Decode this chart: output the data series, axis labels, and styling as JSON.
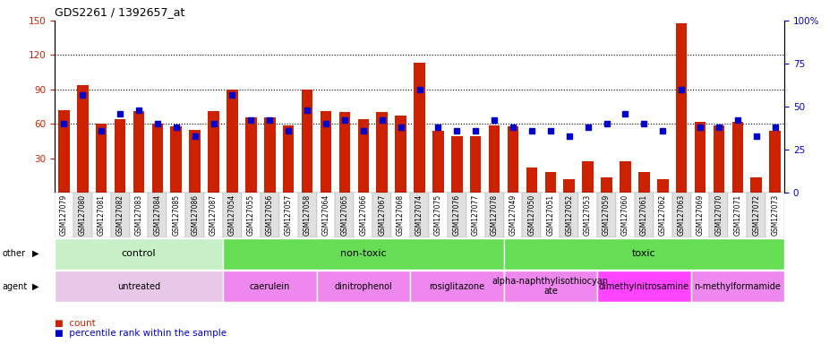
{
  "title": "GDS2261 / 1392657_at",
  "samples": [
    "GSM127079",
    "GSM127080",
    "GSM127081",
    "GSM127082",
    "GSM127083",
    "GSM127084",
    "GSM127085",
    "GSM127086",
    "GSM127087",
    "GSM127054",
    "GSM127055",
    "GSM127056",
    "GSM127057",
    "GSM127058",
    "GSM127064",
    "GSM127065",
    "GSM127066",
    "GSM127067",
    "GSM127068",
    "GSM127074",
    "GSM127075",
    "GSM127076",
    "GSM127077",
    "GSM127078",
    "GSM127049",
    "GSM127050",
    "GSM127051",
    "GSM127052",
    "GSM127053",
    "GSM127059",
    "GSM127060",
    "GSM127061",
    "GSM127062",
    "GSM127063",
    "GSM127069",
    "GSM127070",
    "GSM127071",
    "GSM127072",
    "GSM127073"
  ],
  "counts": [
    72,
    94,
    60,
    64,
    71,
    60,
    58,
    55,
    71,
    90,
    66,
    66,
    59,
    90,
    71,
    70,
    64,
    70,
    67,
    113,
    54,
    49,
    49,
    59,
    58,
    22,
    18,
    12,
    27,
    13,
    27,
    18,
    12,
    148,
    62,
    59,
    62,
    13,
    54
  ],
  "percentiles": [
    40,
    57,
    36,
    46,
    48,
    40,
    38,
    33,
    40,
    57,
    42,
    42,
    36,
    48,
    40,
    42,
    36,
    42,
    38,
    60,
    38,
    36,
    36,
    42,
    38,
    36,
    36,
    33,
    38,
    40,
    46,
    40,
    36,
    60,
    38,
    38,
    42,
    33,
    38
  ],
  "ylim_left": [
    0,
    150
  ],
  "ylim_right": [
    0,
    100
  ],
  "yticks_left": [
    30,
    60,
    90,
    120,
    150
  ],
  "yticks_right": [
    0,
    25,
    50,
    75,
    100
  ],
  "bar_color": "#cc2200",
  "dot_color": "#0000cc",
  "other_groups": [
    {
      "label": "control",
      "start": 0,
      "end": 9,
      "color": "#c8f0c8"
    },
    {
      "label": "non-toxic",
      "start": 9,
      "end": 24,
      "color": "#66dd55"
    },
    {
      "label": "toxic",
      "start": 24,
      "end": 39,
      "color": "#66dd55"
    }
  ],
  "agent_groups": [
    {
      "label": "untreated",
      "start": 0,
      "end": 9,
      "color": "#e8c8e8"
    },
    {
      "label": "caerulein",
      "start": 9,
      "end": 14,
      "color": "#ee88ee"
    },
    {
      "label": "dinitrophenol",
      "start": 14,
      "end": 19,
      "color": "#ee88ee"
    },
    {
      "label": "rosiglitazone",
      "start": 19,
      "end": 24,
      "color": "#ee88ee"
    },
    {
      "label": "alpha-naphthylisothiocyan\nate",
      "start": 24,
      "end": 29,
      "color": "#ee88ee"
    },
    {
      "label": "dimethylnitrosamine",
      "start": 29,
      "end": 34,
      "color": "#ff44ff"
    },
    {
      "label": "n-methylformamide",
      "start": 34,
      "end": 39,
      "color": "#ee88ee"
    }
  ]
}
